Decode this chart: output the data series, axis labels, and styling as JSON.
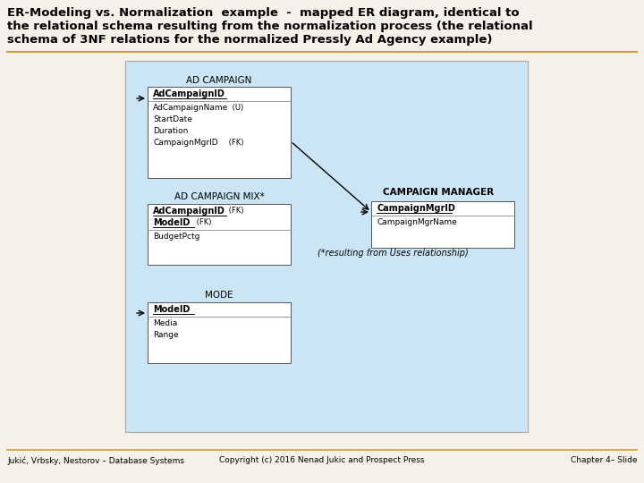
{
  "title_line1": "ER-Modeling vs. Normalization  example  -  mapped ER diagram, identical to",
  "title_line2": "the relational schema resulting from the normalization process (the relational",
  "title_line3": "schema of 3NF relations for the normalized Pressly Ad Agency example)",
  "bg_color": "#f5f0e8",
  "diagram_bg": "#cce5f5",
  "box_bg": "#ffffff",
  "footer_left": "Jukić, Vrbsky, Nestorov – Database Systems",
  "footer_center": "Copyright (c) 2016 Nenad Jukic and Prospect Press",
  "footer_right": "Chapter 4– Slide",
  "separator_color": "#c8a040",
  "text_color": "#000000",
  "gray_line": "#555555"
}
